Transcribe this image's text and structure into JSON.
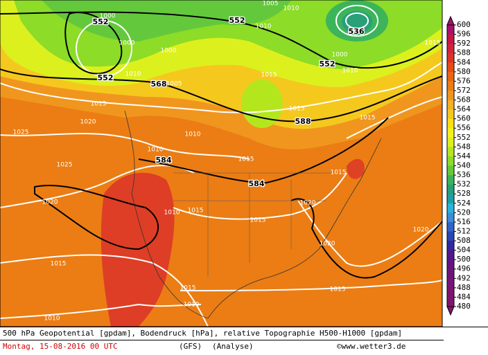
{
  "map": {
    "contour_labels": [
      "552",
      "552",
      "552",
      "536",
      "552",
      "568",
      "588",
      "584",
      "584",
      "1015",
      "1020",
      "1025",
      "1025",
      "1020",
      "1015",
      "1010",
      "1010",
      "1010",
      "1010",
      "1015",
      "1015",
      "1015",
      "1015",
      "1015",
      "1015",
      "1020",
      "1020",
      "1015",
      "1020",
      "1015",
      "1010",
      "1000",
      "1005",
      "1005",
      "1010",
      "1010",
      "1000",
      "1010",
      "1015",
      "1010",
      "1000",
      "1000",
      "1015"
    ]
  },
  "colorbar": {
    "labels": [
      600,
      596,
      592,
      588,
      584,
      580,
      576,
      572,
      568,
      564,
      560,
      556,
      552,
      548,
      544,
      540,
      536,
      532,
      528,
      524,
      520,
      516,
      512,
      508,
      504,
      500,
      496,
      492,
      488,
      484,
      480
    ],
    "colors": [
      "#a8106e",
      "#c81446",
      "#d2233c",
      "#dc3228",
      "#e64b14",
      "#eb6414",
      "#eb7d14",
      "#f0961e",
      "#f5af28",
      "#f5c81e",
      "#fae114",
      "#f5f01e",
      "#dcf01e",
      "#b4e61e",
      "#8cdc28",
      "#64c83c",
      "#3cb45a",
      "#28a078",
      "#1ea0a0",
      "#28b4dc",
      "#3c8cdc",
      "#3264c8",
      "#2846b4",
      "#3228a0",
      "#50188c",
      "#641482",
      "#6e1478",
      "#781478",
      "#7d146e",
      "#82146e"
    ]
  },
  "footer": {
    "line1": "500 hPa Geopotential [gpdam], Bodendruck [hPa], relative Topographie H500-H1000 [gpdam]",
    "date": "Montag, 15-08-2016  00 UTC",
    "model": "(GFS)",
    "run": "(Analyse)",
    "credit": "©www.wetter3.de"
  }
}
